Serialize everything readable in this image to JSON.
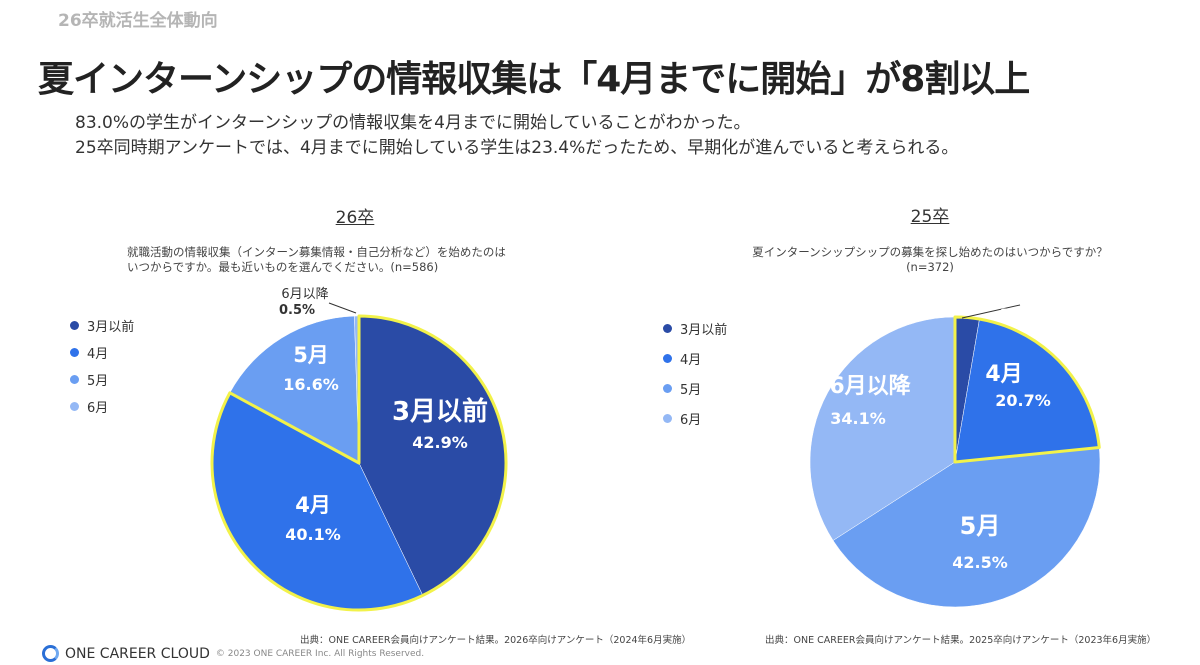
{
  "header": {
    "section": "26卒就活生全体動向",
    "title": "夏インターンシップの情報収集は「4月までに開始」が8割以上",
    "desc1": "83.0%の学生がインターンシップの情報収集を4月までに開始していることがわかった。",
    "desc2": "25卒同時期アンケートでは、4月までに開始している学生は23.4%だったため、早期化が進んでいると考えられる。"
  },
  "colors": {
    "3月以前": "#2a4ba6",
    "4月": "#2f72ea",
    "5月": "#6a9ef2",
    "6月": "#94b8f5",
    "highlight": "#f2f24a"
  },
  "legend": [
    "3月以前",
    "4月",
    "5月",
    "6月"
  ],
  "chart_data": [
    {
      "type": "pie",
      "title": "26卒",
      "question1": "就職活動の情報収集（インターン募集情報・自己分析など）を始めたのは",
      "question2": "いつからですか。最も近いものを選んでください。(n=586)",
      "slices": [
        {
          "label": "3月以前",
          "value": 42.9,
          "color_key": "3月以前"
        },
        {
          "label": "4月",
          "value": 40.1,
          "color_key": "4月"
        },
        {
          "label": "5月",
          "value": 16.6,
          "color_key": "5月"
        },
        {
          "label": "6月以降",
          "value": 0.5,
          "color_key": "6月"
        }
      ],
      "highlight_slices": [
        "3月以前",
        "4月"
      ],
      "source": "出典：ONE CAREER会員向けアンケート結果。2026卒向けアンケート（2024年6月実施）"
    },
    {
      "type": "pie",
      "title": "25卒",
      "question1": "夏インターンシップシップの募集を探し始めたのはいつからですか？",
      "question2": "(n=372)",
      "slices": [
        {
          "label": "3月以前",
          "value": 2.7,
          "color_key": "3月以前"
        },
        {
          "label": "4月",
          "value": 20.7,
          "color_key": "4月"
        },
        {
          "label": "5月",
          "value": 42.5,
          "color_key": "5月"
        },
        {
          "label": "6月以降",
          "value": 34.1,
          "color_key": "6月"
        }
      ],
      "highlight_slices": [
        "3月以前",
        "4月"
      ],
      "source": "出典：ONE CAREER会員向けアンケート結果。2025卒向けアンケート（2023年6月実施）"
    }
  ],
  "footer": {
    "brand": "ONE CAREER CLOUD",
    "copyright": "© 2023 ONE CAREER Inc. All Rights Reserved."
  }
}
